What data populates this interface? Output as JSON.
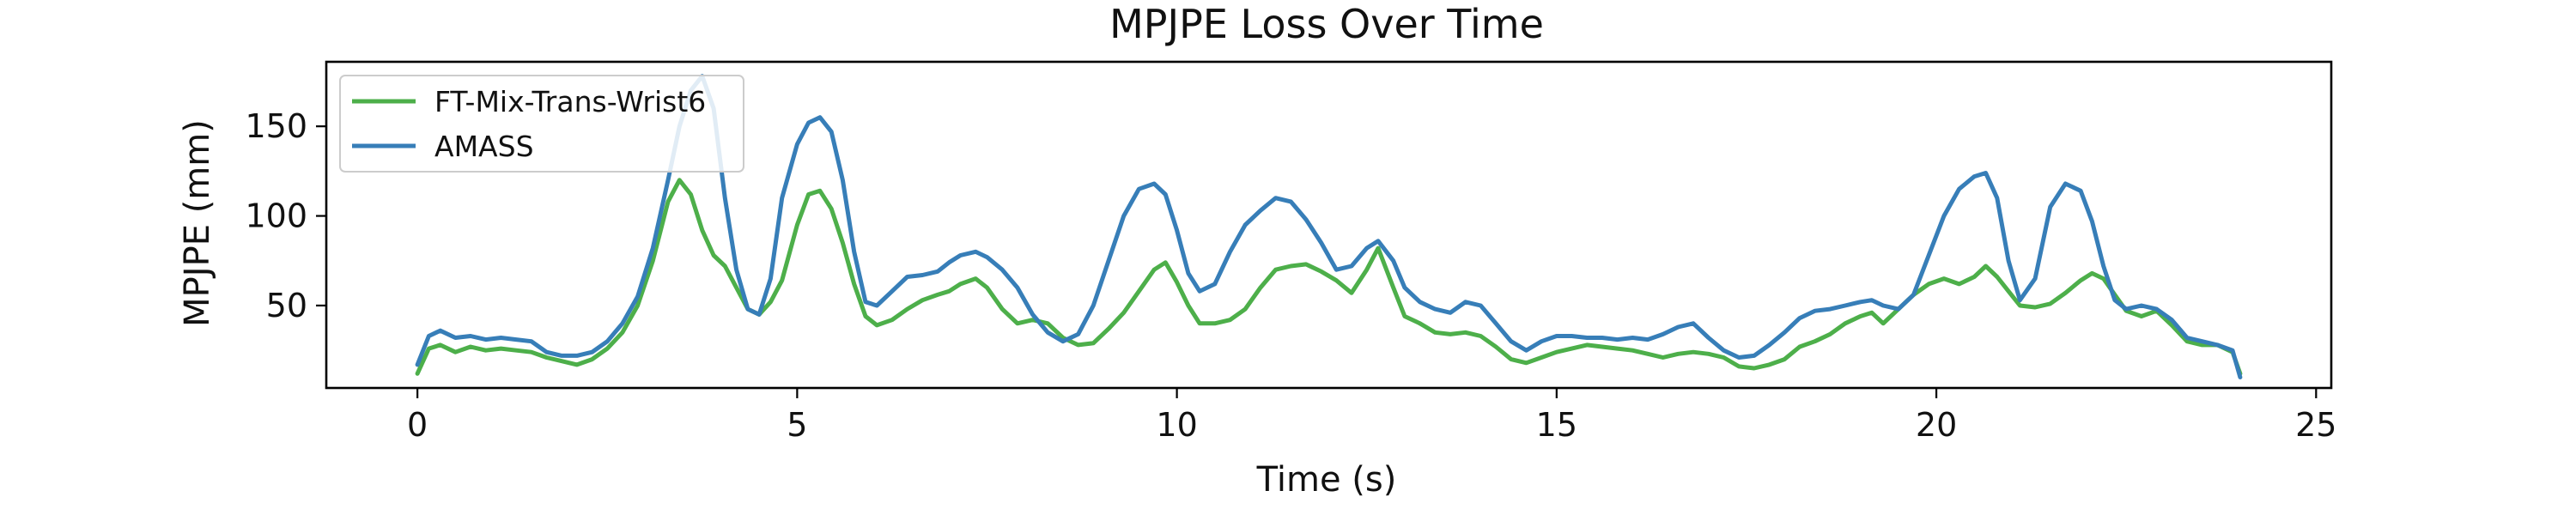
{
  "chart_data": {
    "type": "line",
    "title": "MPJPE Loss Over Time",
    "xlabel": "Time (s)",
    "ylabel": "MPJPE (mm)",
    "xlim": [
      -1.2,
      25.2
    ],
    "ylim": [
      4,
      186
    ],
    "xticks": [
      0,
      5,
      10,
      15,
      20,
      25
    ],
    "yticks": [
      50,
      100,
      150
    ],
    "grid": false,
    "legend_position": "top-left",
    "series": [
      {
        "name": "FT-Mix-Trans-Wrist6",
        "color": "#4daf4a",
        "x": [
          0,
          0.15,
          0.3,
          0.5,
          0.7,
          0.9,
          1.1,
          1.3,
          1.5,
          1.7,
          1.9,
          2.1,
          2.3,
          2.5,
          2.7,
          2.9,
          3.1,
          3.3,
          3.45,
          3.6,
          3.75,
          3.9,
          4.05,
          4.2,
          4.35,
          4.5,
          4.65,
          4.8,
          5.0,
          5.15,
          5.3,
          5.45,
          5.6,
          5.75,
          5.9,
          6.05,
          6.25,
          6.45,
          6.65,
          6.85,
          7.0,
          7.15,
          7.35,
          7.5,
          7.7,
          7.9,
          8.1,
          8.3,
          8.5,
          8.7,
          8.9,
          9.1,
          9.3,
          9.5,
          9.7,
          9.85,
          10.0,
          10.15,
          10.3,
          10.5,
          10.7,
          10.9,
          11.1,
          11.3,
          11.5,
          11.7,
          11.9,
          12.1,
          12.3,
          12.5,
          12.65,
          12.85,
          13.0,
          13.2,
          13.4,
          13.6,
          13.8,
          14.0,
          14.2,
          14.4,
          14.6,
          14.8,
          15.0,
          15.2,
          15.4,
          15.6,
          15.8,
          16.0,
          16.2,
          16.4,
          16.6,
          16.8,
          17.0,
          17.2,
          17.4,
          17.6,
          17.8,
          18.0,
          18.2,
          18.4,
          18.6,
          18.8,
          19.0,
          19.15,
          19.3,
          19.5,
          19.7,
          19.9,
          20.1,
          20.3,
          20.5,
          20.65,
          20.8,
          20.95,
          21.1,
          21.3,
          21.5,
          21.7,
          21.9,
          22.05,
          22.2,
          22.35,
          22.5,
          22.7,
          22.9,
          23.1,
          23.3,
          23.5,
          23.7,
          23.9,
          24.0
        ],
        "y": [
          12,
          26,
          28,
          24,
          27,
          25,
          26,
          25,
          24,
          21,
          19,
          17,
          20,
          26,
          35,
          50,
          75,
          108,
          120,
          112,
          92,
          78,
          72,
          60,
          48,
          45,
          52,
          64,
          95,
          112,
          114,
          104,
          85,
          62,
          44,
          39,
          42,
          48,
          53,
          56,
          58,
          62,
          65,
          60,
          48,
          40,
          42,
          40,
          32,
          28,
          29,
          37,
          46,
          58,
          70,
          74,
          63,
          50,
          40,
          40,
          42,
          48,
          60,
          70,
          72,
          73,
          69,
          64,
          57,
          70,
          82,
          60,
          44,
          40,
          35,
          34,
          35,
          33,
          27,
          20,
          18,
          21,
          24,
          26,
          28,
          27,
          26,
          25,
          23,
          21,
          23,
          24,
          23,
          21,
          16,
          15,
          17,
          20,
          27,
          30,
          34,
          40,
          44,
          46,
          40,
          48,
          56,
          62,
          65,
          62,
          66,
          72,
          66,
          58,
          50,
          49,
          51,
          57,
          64,
          68,
          65,
          56,
          47,
          44,
          47,
          39,
          30,
          28,
          28,
          24,
          12
        ]
      },
      {
        "name": "AMASS",
        "color": "#377eb8",
        "x": [
          0,
          0.15,
          0.3,
          0.5,
          0.7,
          0.9,
          1.1,
          1.3,
          1.5,
          1.7,
          1.9,
          2.1,
          2.3,
          2.5,
          2.7,
          2.9,
          3.1,
          3.3,
          3.45,
          3.6,
          3.75,
          3.9,
          4.05,
          4.2,
          4.35,
          4.5,
          4.65,
          4.8,
          5.0,
          5.15,
          5.3,
          5.45,
          5.6,
          5.75,
          5.9,
          6.05,
          6.25,
          6.45,
          6.65,
          6.85,
          7.0,
          7.15,
          7.35,
          7.5,
          7.7,
          7.9,
          8.1,
          8.3,
          8.5,
          8.7,
          8.9,
          9.1,
          9.3,
          9.5,
          9.7,
          9.85,
          10.0,
          10.15,
          10.3,
          10.5,
          10.7,
          10.9,
          11.1,
          11.3,
          11.5,
          11.7,
          11.9,
          12.1,
          12.3,
          12.5,
          12.65,
          12.85,
          13.0,
          13.2,
          13.4,
          13.6,
          13.8,
          14.0,
          14.2,
          14.4,
          14.6,
          14.8,
          15.0,
          15.2,
          15.4,
          15.6,
          15.8,
          16.0,
          16.2,
          16.4,
          16.6,
          16.8,
          17.0,
          17.2,
          17.4,
          17.6,
          17.8,
          18.0,
          18.2,
          18.4,
          18.6,
          18.8,
          19.0,
          19.15,
          19.3,
          19.5,
          19.7,
          19.9,
          20.1,
          20.3,
          20.5,
          20.65,
          20.8,
          20.95,
          21.1,
          21.3,
          21.5,
          21.7,
          21.9,
          22.05,
          22.2,
          22.35,
          22.5,
          22.7,
          22.9,
          23.1,
          23.3,
          23.5,
          23.7,
          23.9,
          24.0
        ],
        "y": [
          17,
          33,
          36,
          32,
          33,
          31,
          32,
          31,
          30,
          24,
          22,
          22,
          24,
          30,
          40,
          55,
          82,
          120,
          150,
          170,
          178,
          160,
          110,
          70,
          48,
          45,
          65,
          110,
          140,
          152,
          155,
          147,
          120,
          80,
          52,
          50,
          58,
          66,
          67,
          69,
          74,
          78,
          80,
          77,
          70,
          60,
          45,
          35,
          30,
          34,
          50,
          75,
          100,
          115,
          118,
          112,
          92,
          68,
          58,
          62,
          80,
          95,
          103,
          110,
          108,
          98,
          85,
          70,
          72,
          82,
          86,
          75,
          60,
          52,
          48,
          46,
          52,
          50,
          40,
          30,
          25,
          30,
          33,
          33,
          32,
          32,
          31,
          32,
          31,
          34,
          38,
          40,
          32,
          25,
          21,
          22,
          28,
          35,
          43,
          47,
          48,
          50,
          52,
          53,
          50,
          48,
          56,
          78,
          100,
          115,
          122,
          124,
          110,
          75,
          53,
          65,
          105,
          118,
          114,
          97,
          72,
          53,
          48,
          50,
          48,
          42,
          32,
          30,
          28,
          25,
          10
        ]
      }
    ]
  }
}
